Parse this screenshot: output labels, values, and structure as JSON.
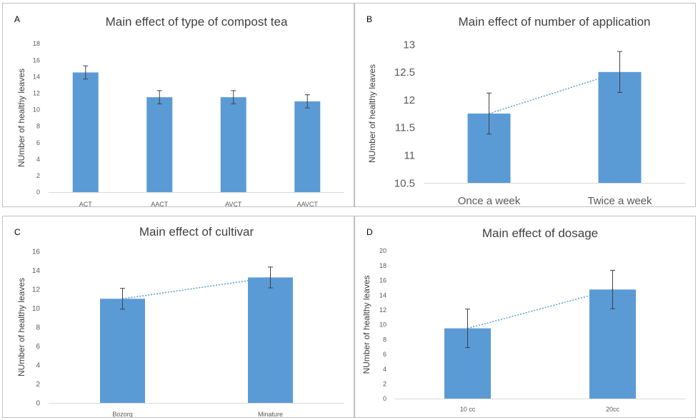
{
  "figure": {
    "bar_color": "#5b9bd5",
    "error_color": "#404040",
    "trend_color": "#5b9bd5"
  },
  "chart_data": [
    {
      "panel": "A",
      "type": "bar",
      "title": "Main effect of type of compost tea",
      "ylabel": "NUmber of healthy leaves",
      "xlabel": "",
      "categories": [
        "ACT",
        "AACT",
        "AVCT",
        "AAVCT"
      ],
      "values": [
        14.5,
        11.5,
        11.5,
        11.0
      ],
      "errors": [
        0.8,
        0.8,
        0.8,
        0.8
      ],
      "ylim": [
        0,
        18
      ],
      "yticks": [
        0,
        2,
        4,
        6,
        8,
        10,
        12,
        14,
        16,
        18
      ],
      "ytick_labels": [
        "0",
        "2",
        "4",
        "6",
        "8",
        "10",
        "12",
        "14",
        "16",
        "18"
      ],
      "trendline": false,
      "grid": false,
      "legend": "none"
    },
    {
      "panel": "B",
      "type": "bar",
      "title": "Main effect of number of application",
      "ylabel": "NUmber of healthy leaves",
      "xlabel": "",
      "categories": [
        "Once a week",
        "Twice a week"
      ],
      "values": [
        11.75,
        12.5
      ],
      "errors": [
        0.37,
        0.37
      ],
      "ylim": [
        10.5,
        13
      ],
      "yticks": [
        10.5,
        11,
        11.5,
        12,
        12.5,
        13
      ],
      "ytick_labels": [
        "10.5",
        "11",
        "11.5",
        "12",
        "12.5",
        "13"
      ],
      "trendline": true,
      "grid": false,
      "legend": "none"
    },
    {
      "panel": "C",
      "type": "bar",
      "title": "Main effect of cultivar",
      "ylabel": "NUmber of healthy leaves",
      "xlabel": "",
      "categories": [
        "Bozorg",
        "Minature"
      ],
      "values": [
        11.0,
        13.25
      ],
      "errors": [
        1.1,
        1.1
      ],
      "ylim": [
        0,
        16
      ],
      "yticks": [
        0,
        2,
        4,
        6,
        8,
        10,
        12,
        14,
        16
      ],
      "ytick_labels": [
        "0",
        "2",
        "4",
        "6",
        "8",
        "10",
        "12",
        "14",
        "16"
      ],
      "trendline": true,
      "grid": false,
      "legend": "none"
    },
    {
      "panel": "D",
      "type": "bar",
      "title": "Main effect of dosage",
      "ylabel": "NUmber of healthy leaves",
      "xlabel": "",
      "categories": [
        "10 cc",
        "20cc"
      ],
      "values": [
        9.5,
        14.75
      ],
      "errors": [
        2.6,
        2.6
      ],
      "ylim": [
        0,
        20
      ],
      "yticks": [
        0,
        2,
        4,
        6,
        8,
        10,
        12,
        14,
        16,
        18,
        20
      ],
      "ytick_labels": [
        "0",
        "2",
        "4",
        "6",
        "8",
        "10",
        "12",
        "14",
        "16",
        "18",
        "20"
      ],
      "trendline": true,
      "grid": false,
      "legend": "none"
    }
  ]
}
